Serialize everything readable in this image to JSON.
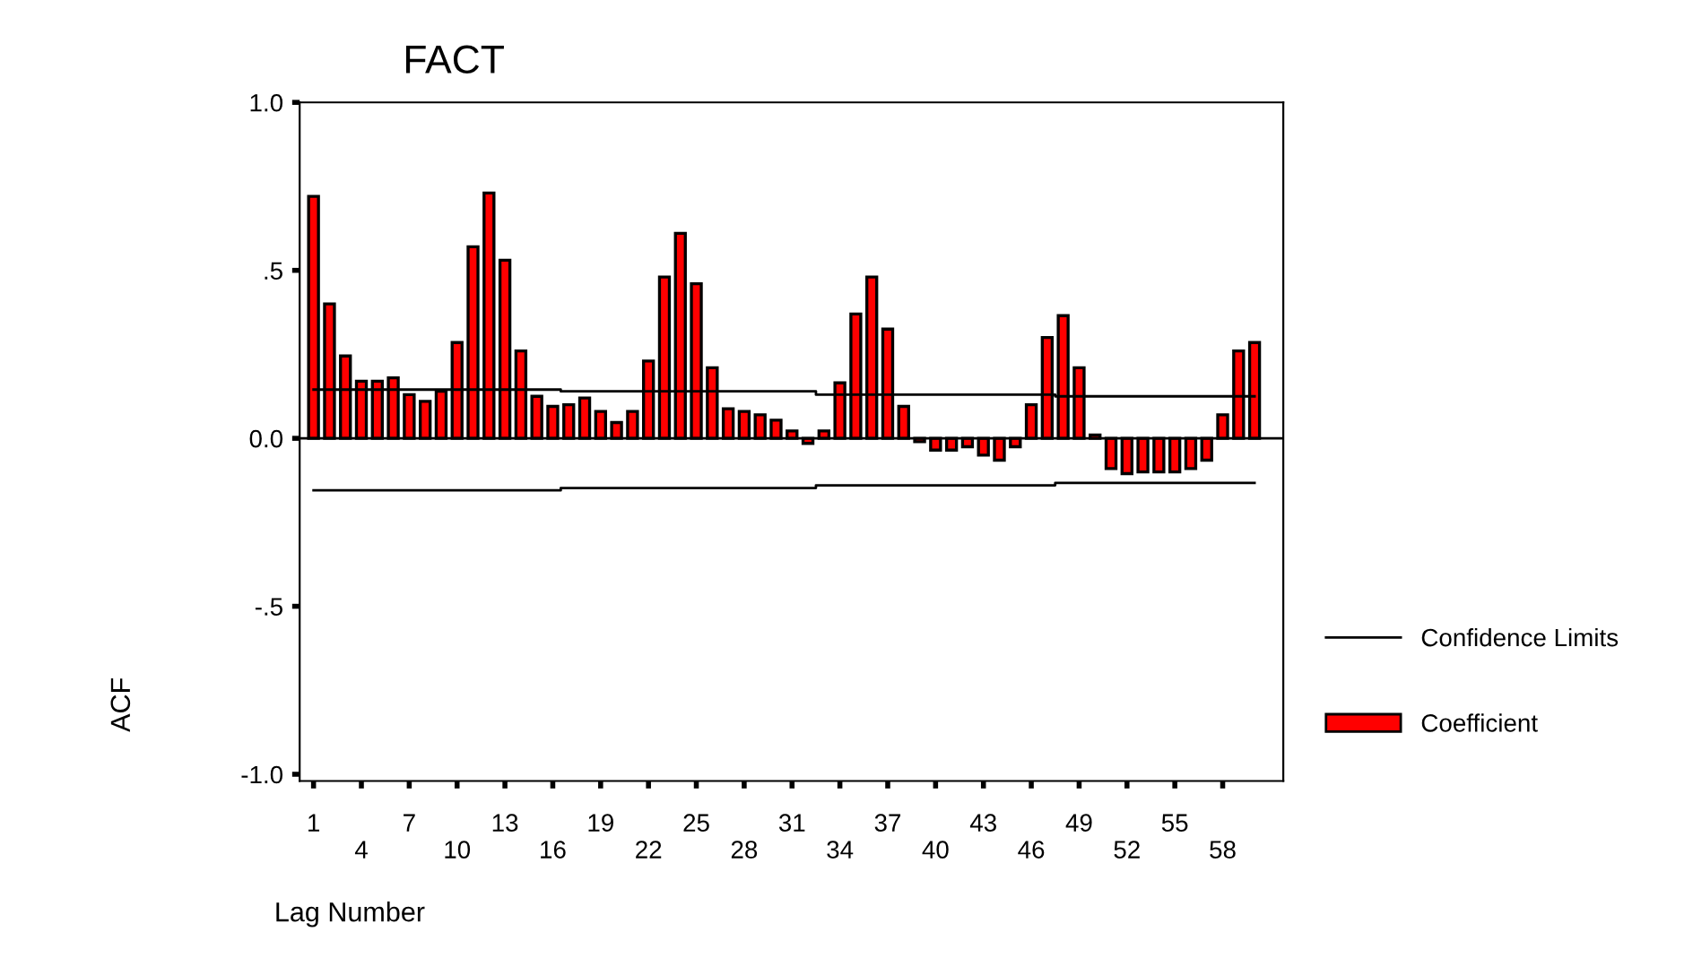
{
  "chart_data": {
    "type": "bar",
    "title": "FACT",
    "xlabel": "Lag Number",
    "ylabel": "ACF",
    "categories": [
      "1",
      null,
      null,
      "4",
      null,
      null,
      "7",
      null,
      null,
      "10",
      null,
      null,
      "13",
      null,
      null,
      "16",
      null,
      null,
      "19",
      null,
      null,
      "22",
      null,
      null,
      "25",
      null,
      null,
      "28",
      null,
      null,
      "31",
      null,
      null,
      "34",
      null,
      null,
      "37",
      null,
      null,
      "40",
      null,
      null,
      "43",
      null,
      null,
      "46",
      null,
      null,
      "49",
      null,
      null,
      "52",
      null,
      null,
      "55",
      null,
      null,
      "58",
      null,
      null
    ],
    "series": [
      {
        "name": "Coefficient",
        "color": "#ff0000",
        "values": [
          0.72,
          0.4,
          0.245,
          0.17,
          0.17,
          0.18,
          0.13,
          0.11,
          0.14,
          0.285,
          0.57,
          0.73,
          0.53,
          0.26,
          0.125,
          0.095,
          0.1,
          0.12,
          0.08,
          0.047,
          0.08,
          0.23,
          0.48,
          0.61,
          0.46,
          0.21,
          0.088,
          0.08,
          0.07,
          0.054,
          0.022,
          -0.015,
          0.022,
          0.165,
          0.37,
          0.48,
          0.325,
          0.095,
          -0.01,
          -0.035,
          -0.035,
          -0.025,
          -0.05,
          -0.065,
          -0.025,
          0.1,
          0.3,
          0.365,
          0.21,
          0.01,
          -0.09,
          -0.105,
          -0.1,
          -0.1,
          -0.1,
          -0.09,
          -0.065,
          0.07,
          0.26,
          0.285
        ]
      },
      {
        "name": "Confidence Limits",
        "type": "line",
        "color": "#000000",
        "values": [
          0.145,
          0.145,
          0.145,
          0.145,
          0.145,
          0.145,
          0.145,
          0.145,
          0.145,
          0.145,
          0.145,
          0.145,
          0.145,
          0.145,
          0.145,
          0.145,
          0.14,
          0.14,
          0.14,
          0.14,
          0.14,
          0.14,
          0.14,
          0.14,
          0.14,
          0.14,
          0.14,
          0.14,
          0.14,
          0.14,
          0.14,
          0.14,
          0.13,
          0.13,
          0.13,
          0.13,
          0.13,
          0.13,
          0.13,
          0.13,
          0.13,
          0.13,
          0.13,
          0.13,
          0.13,
          0.13,
          0.13,
          0.125,
          0.125,
          0.125,
          0.125,
          0.125,
          0.125,
          0.125,
          0.125,
          0.125,
          0.125,
          0.125,
          0.125,
          0.125
        ]
      },
      {
        "type": "line",
        "color": "#000000",
        "values": [
          -0.155,
          -0.155,
          -0.155,
          -0.155,
          -0.155,
          -0.155,
          -0.155,
          -0.155,
          -0.155,
          -0.155,
          -0.155,
          -0.155,
          -0.155,
          -0.155,
          -0.155,
          -0.155,
          -0.148,
          -0.148,
          -0.148,
          -0.148,
          -0.148,
          -0.148,
          -0.148,
          -0.148,
          -0.148,
          -0.148,
          -0.148,
          -0.148,
          -0.148,
          -0.148,
          -0.148,
          -0.148,
          -0.14,
          -0.14,
          -0.14,
          -0.14,
          -0.14,
          -0.14,
          -0.14,
          -0.14,
          -0.14,
          -0.14,
          -0.14,
          -0.14,
          -0.14,
          -0.14,
          -0.14,
          -0.133,
          -0.133,
          -0.133,
          -0.133,
          -0.133,
          -0.133,
          -0.133,
          -0.133,
          -0.133,
          -0.133,
          -0.133,
          -0.133,
          -0.133
        ]
      }
    ],
    "ylim": [
      -1.02,
      1.0
    ],
    "yticks": [
      {
        "value": 1.0,
        "label": "1.0"
      },
      {
        "value": 0.5,
        "label": ".5"
      },
      {
        "value": 0.0,
        "label": "0.0"
      },
      {
        "value": -0.5,
        "label": "-.5"
      },
      {
        "value": -1.0,
        "label": "-1.0"
      }
    ],
    "ref_lines": [
      {
        "axis": "y",
        "value": 0,
        "color": "#000000"
      }
    ],
    "grid": false,
    "legend": "right"
  }
}
